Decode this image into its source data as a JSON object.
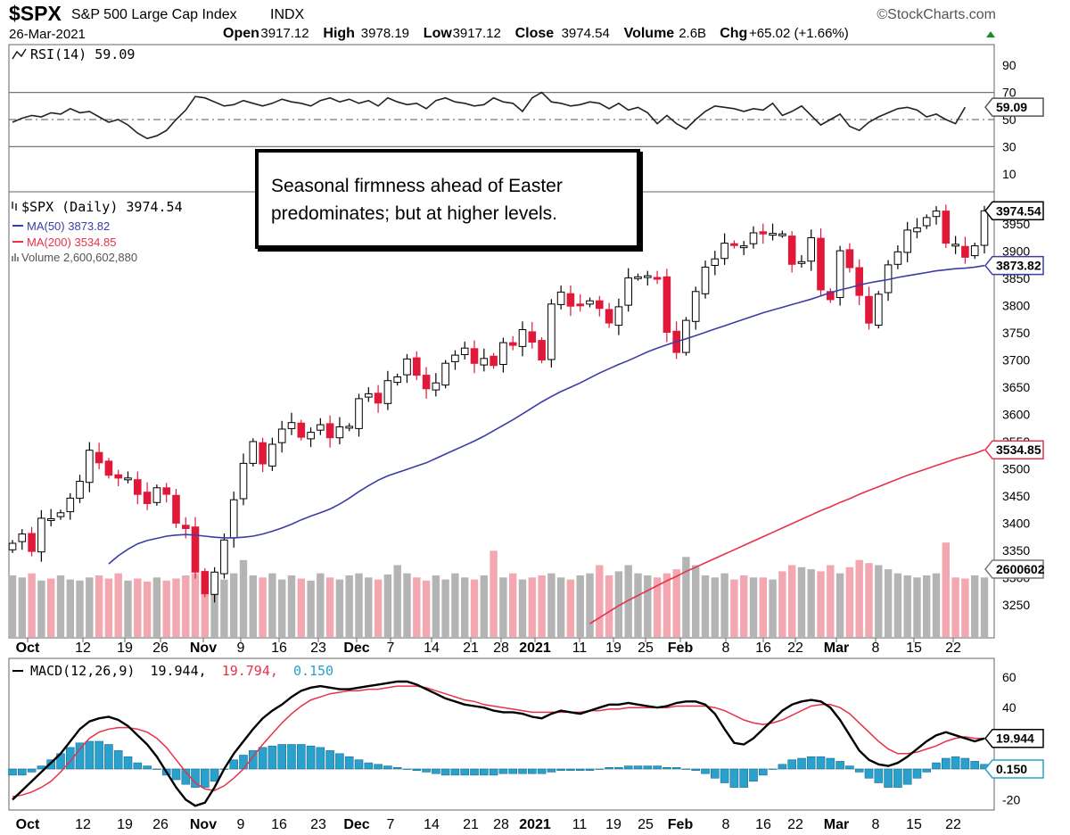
{
  "header": {
    "symbol": "$SPX",
    "name": "S&P 500 Large Cap Index",
    "exchange": "INDX",
    "date": "26-Mar-2021",
    "watermark": "©StockCharts.com",
    "stats": [
      {
        "label": "Open",
        "value": "3917.12"
      },
      {
        "label": "High",
        "value": "3978.19"
      },
      {
        "label": "Low",
        "value": "3917.12"
      },
      {
        "label": "Close",
        "value": "3974.54"
      },
      {
        "label": "Volume",
        "value": "2.6B"
      },
      {
        "label": "Chg",
        "value": "+65.02 (+1.66%)"
      }
    ]
  },
  "rsi_panel": {
    "legend": "RSI(14) 59.09",
    "current_label": "59.09",
    "axis_ticks": [
      "90",
      "70",
      "50",
      "30",
      "10"
    ]
  },
  "price_panel": {
    "legend_price": "$SPX (Daily) 3974.54",
    "legend_ma50": "MA(50) 3873.82",
    "legend_ma200": "MA(200) 3534.85",
    "legend_volume": "Volume 2,600,602,880",
    "price_label": "3974.54",
    "ma50_label": "3873.82",
    "ma200_label": "3534.85",
    "volume_label": "2600602",
    "axis_ticks": [
      "3950",
      "3900",
      "3850",
      "3800",
      "3750",
      "3700",
      "3650",
      "3600",
      "3550",
      "3500",
      "3450",
      "3400",
      "3350",
      "3300",
      "3250"
    ]
  },
  "macd_panel": {
    "legend_name": "MACD(12,26,9)",
    "legend_macd": "19.944,",
    "legend_signal": "19.794,",
    "legend_hist": "0.150",
    "macd_label": "19.944",
    "hist_label": "0.150",
    "axis_ticks": [
      "60",
      "40",
      "20",
      "-20"
    ]
  },
  "x_axis": [
    "Oct",
    "12",
    "19",
    "26",
    "Nov",
    "9",
    "16",
    "23",
    "Dec",
    "7",
    "14",
    "21",
    "28",
    "2021",
    "11",
    "19",
    "25",
    "Feb",
    "8",
    "16",
    "22",
    "Mar",
    "8",
    "15",
    "22"
  ],
  "annotation": "Seasonal firmness ahead of Easter predominates; but at higher levels.",
  "colors": {
    "up": "#ffffff",
    "down": "#e0193a",
    "ma50": "#3c3ca6",
    "ma200": "#e8314a",
    "volume_up": "#b4b4b4",
    "volume_down": "#f2a7b1",
    "macd": "#000000",
    "signal": "#e8314a",
    "histogram": "#2aa0cc",
    "rsi": "#222222"
  },
  "chart_data": [
    {
      "type": "line",
      "name": "RSI(14)",
      "ylim": [
        0,
        100
      ],
      "reference_lines": [
        70,
        50,
        30
      ],
      "values": [
        48,
        51,
        53,
        52,
        55,
        54,
        58,
        55,
        56,
        52,
        48,
        50,
        46,
        40,
        36,
        38,
        42,
        50,
        57,
        67,
        66,
        63,
        60,
        61,
        64,
        62,
        60,
        62,
        65,
        63,
        62,
        60,
        64,
        66,
        63,
        65,
        62,
        64,
        60,
        66,
        63,
        61,
        62,
        58,
        64,
        66,
        63,
        62,
        60,
        61,
        66,
        63,
        62,
        56,
        66,
        70,
        63,
        62,
        60,
        61,
        63,
        62,
        58,
        62,
        57,
        59,
        55,
        47,
        53,
        47,
        43,
        50,
        56,
        60,
        59,
        58,
        56,
        58,
        57,
        62,
        53,
        56,
        60,
        53,
        46,
        50,
        54,
        45,
        42,
        48,
        52,
        55,
        58,
        59,
        57,
        52,
        54,
        50,
        47,
        59.09
      ]
    },
    {
      "type": "candlestick",
      "name": "$SPX (Daily)",
      "ylim": [
        3215,
        4005
      ],
      "start_date": "2020-09-30",
      "close_values": [
        3363,
        3380,
        3348,
        3409,
        3408,
        3419,
        3446,
        3477,
        3534,
        3511,
        3488,
        3483,
        3483,
        3453,
        3436,
        3465,
        3453,
        3400,
        3390,
        3310,
        3270,
        3310,
        3369,
        3443,
        3510,
        3550,
        3509,
        3545,
        3573,
        3585,
        3558,
        3567,
        3581,
        3557,
        3577,
        3578,
        3629,
        3638,
        3621,
        3662,
        3669,
        3702,
        3672,
        3647,
        3658,
        3694,
        3709,
        3722,
        3694,
        3703,
        3690,
        3732,
        3727,
        3756,
        3733,
        3700,
        3803,
        3825,
        3799,
        3801,
        3809,
        3795,
        3768,
        3798,
        3851,
        3853,
        3855,
        3849,
        3751,
        3714,
        3773,
        3826,
        3871,
        3886,
        3915,
        3911,
        3910,
        3934,
        3932,
        3933,
        3932,
        3876,
        3881,
        3925,
        3829,
        3811,
        3901,
        3870,
        3819,
        3768,
        3821,
        3875,
        3899,
        3939,
        3943,
        3962,
        3974,
        3915,
        3913,
        3889,
        3910,
        3974.54
      ],
      "ma50_values": [
        3325,
        3340,
        3352,
        3362,
        3368,
        3372,
        3376,
        3378,
        3379,
        3378,
        3376,
        3374,
        3373,
        3373,
        3374,
        3376,
        3380,
        3385,
        3391,
        3398,
        3406,
        3413,
        3419,
        3426,
        3435,
        3446,
        3458,
        3469,
        3479,
        3487,
        3493,
        3499,
        3505,
        3511,
        3519,
        3527,
        3535,
        3543,
        3551,
        3560,
        3570,
        3580,
        3590,
        3601,
        3612,
        3623,
        3633,
        3642,
        3650,
        3658,
        3667,
        3676,
        3684,
        3692,
        3699,
        3707,
        3715,
        3722,
        3728,
        3734,
        3739,
        3745,
        3751,
        3757,
        3763,
        3769,
        3775,
        3781,
        3787,
        3792,
        3797,
        3802,
        3807,
        3812,
        3818,
        3824,
        3829,
        3833,
        3838,
        3842,
        3845,
        3848,
        3852,
        3855,
        3858,
        3861,
        3864,
        3866,
        3868,
        3869,
        3871,
        3873.82
      ],
      "ma200_start_index": 52,
      "ma200_values": [
        3215,
        3226,
        3237,
        3248,
        3258,
        3267,
        3276,
        3285,
        3294,
        3302,
        3311,
        3319,
        3327,
        3335,
        3343,
        3351,
        3359,
        3367,
        3375,
        3383,
        3391,
        3399,
        3407,
        3415,
        3423,
        3430,
        3438,
        3445,
        3453,
        3460,
        3467,
        3474,
        3481,
        3488,
        3494,
        3500,
        3506,
        3512,
        3518,
        3523,
        3528,
        3534.85
      ],
      "current_close": 3974.54,
      "current_ma50": 3873.82,
      "current_ma200": 3534.85
    },
    {
      "type": "bar",
      "name": "Volume",
      "values_pct": [
        60,
        58,
        62,
        55,
        57,
        60,
        56,
        55,
        58,
        60,
        57,
        62,
        55,
        57,
        54,
        58,
        55,
        57,
        60,
        62,
        58,
        60,
        56,
        62,
        75,
        60,
        58,
        62,
        56,
        60,
        57,
        55,
        62,
        58,
        56,
        60,
        62,
        58,
        56,
        61,
        70,
        62,
        58,
        55,
        60,
        56,
        62,
        58,
        56,
        60,
        84,
        58,
        62,
        56,
        58,
        60,
        62,
        58,
        56,
        60,
        62,
        70,
        60,
        64,
        70,
        62,
        60,
        58,
        62,
        66,
        78,
        70,
        60,
        58,
        62,
        56,
        60,
        58,
        58,
        56,
        64,
        70,
        68,
        66,
        64,
        70,
        62,
        68,
        75,
        72,
        70,
        66,
        62,
        60,
        58,
        60,
        62,
        92,
        58,
        57,
        60,
        58
      ],
      "current_volume": 2600602880
    },
    {
      "type": "line",
      "name": "MACD(12,26,9)",
      "ylim": [
        -27,
        66
      ],
      "macd_values": [
        -20,
        -14,
        -8,
        -2,
        4,
        10,
        18,
        26,
        31,
        33,
        34,
        32,
        28,
        22,
        16,
        8,
        -2,
        -12,
        -20,
        -24,
        -22,
        -12,
        0,
        10,
        18,
        26,
        33,
        38,
        42,
        47,
        51,
        53,
        54,
        53,
        52,
        52,
        53,
        54,
        55,
        56,
        57,
        57,
        55,
        52,
        49,
        46,
        44,
        42,
        41,
        40,
        38,
        37,
        37,
        36,
        34,
        33,
        36,
        38,
        37,
        36,
        38,
        40,
        42,
        42,
        43,
        42,
        41,
        40,
        41,
        43,
        44,
        44,
        42,
        36,
        26,
        17,
        16,
        20,
        26,
        32,
        38,
        42,
        44,
        45,
        44,
        40,
        32,
        22,
        12,
        6,
        3,
        2,
        4,
        8,
        13,
        18,
        22,
        24,
        22,
        20,
        18,
        19.944
      ],
      "signal_values": [
        -18,
        -17,
        -15,
        -12,
        -8,
        -2,
        5,
        13,
        20,
        24,
        26,
        27,
        27,
        26,
        24,
        20,
        14,
        6,
        -2,
        -9,
        -13,
        -14,
        -11,
        -6,
        0,
        8,
        16,
        23,
        30,
        36,
        41,
        45,
        47,
        49,
        50,
        51,
        51,
        52,
        52,
        53,
        54,
        54,
        54,
        53,
        51,
        49,
        47,
        45,
        44,
        42,
        41,
        40,
        39,
        38,
        37,
        37,
        37,
        37,
        37,
        37,
        38,
        38,
        39,
        39,
        40,
        40,
        40,
        40,
        40,
        41,
        41,
        41,
        41,
        40,
        38,
        35,
        32,
        30,
        29,
        30,
        32,
        35,
        38,
        41,
        42,
        42,
        40,
        36,
        30,
        24,
        18,
        13,
        10,
        10,
        11,
        13,
        15,
        18,
        20,
        21,
        20,
        19.794
      ],
      "histogram_values": [
        -4,
        -4,
        -2,
        2,
        6,
        10,
        14,
        17,
        18,
        18,
        16,
        12,
        8,
        4,
        2,
        0,
        -4,
        -7,
        -10,
        -12,
        -12,
        -8,
        0,
        6,
        9,
        12,
        14,
        15,
        16,
        16,
        16,
        15,
        14,
        12,
        10,
        8,
        6,
        4,
        3,
        2,
        1,
        0,
        -1,
        -2,
        -3,
        -4,
        -4,
        -4,
        -4,
        -4,
        -4,
        -3,
        -3,
        -3,
        -3,
        -3,
        -2,
        -1,
        -1,
        -1,
        -1,
        0,
        1,
        1,
        2,
        2,
        2,
        2,
        1,
        1,
        0,
        -1,
        -3,
        -6,
        -9,
        -12,
        -12,
        -8,
        -4,
        0,
        3,
        6,
        7,
        8,
        8,
        7,
        5,
        2,
        -2,
        -6,
        -9,
        -12,
        -12,
        -10,
        -6,
        -2,
        4,
        7,
        8,
        7,
        5,
        3,
        1,
        0,
        -1,
        0.15
      ]
    }
  ]
}
